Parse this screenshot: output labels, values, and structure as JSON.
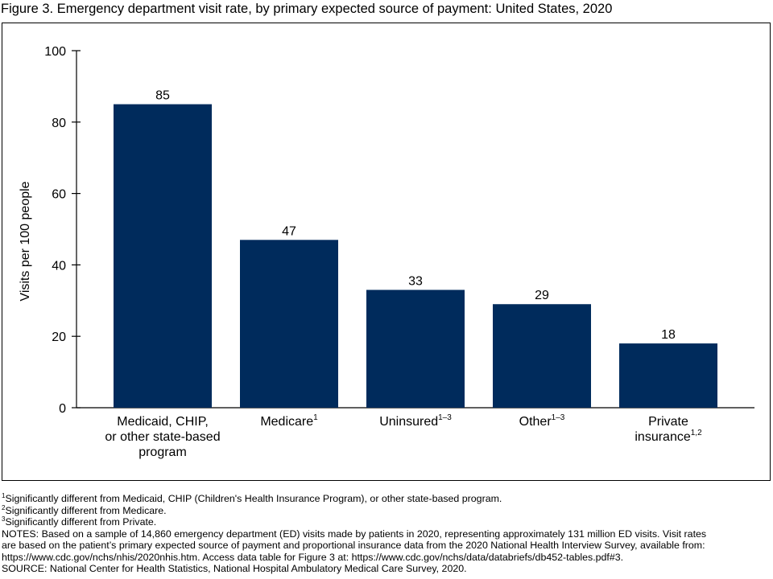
{
  "title": "Figure 3. Emergency department visit rate, by primary expected source of payment: United States, 2020",
  "chart_data": {
    "type": "bar",
    "title": "Figure 3. Emergency department visit rate, by primary expected source of payment: United States, 2020",
    "ylabel": "Visits per 100 people",
    "xlabel": "",
    "ylim": [
      0,
      100
    ],
    "yticks": [
      0,
      20,
      40,
      60,
      80,
      100
    ],
    "categories": [
      "Medicaid, CHIP, or other state-based program",
      "Medicare",
      "Uninsured",
      "Other",
      "Private insurance"
    ],
    "category_lines": [
      [
        "Medicaid, CHIP,",
        "or other state-based",
        "program"
      ],
      [
        "Medicare"
      ],
      [
        "Uninsured"
      ],
      [
        "Other"
      ],
      [
        "Private",
        "insurance"
      ]
    ],
    "category_superscripts": [
      "",
      "1",
      "1–3",
      "1–3",
      "1,2"
    ],
    "values": [
      85,
      47,
      33,
      29,
      18
    ],
    "value_labels": [
      "85",
      "47",
      "33",
      "29",
      "18"
    ],
    "bar_color": "#002b5c",
    "grid": false
  },
  "footnotes": [
    {
      "mark": "1",
      "text": "Significantly different from Medicaid, CHIP (Children's Health Insurance Program), or other state-based program."
    },
    {
      "mark": "2",
      "text": "Significantly different from Medicare."
    },
    {
      "mark": "3",
      "text": "Significantly different from Private."
    }
  ],
  "notes": {
    "line1": "NOTES: Based on a sample of 14,860 emergency department (ED) visits made by patients in 2020, representing approximately 131 million ED visits. Visit rates",
    "line2": "are based on the patient’s primary expected source of payment and proportional insurance data from the 2020 National Health Interview Survey, available from:",
    "line3": "https://www.cdc.gov/nchs/nhis/2020nhis.htm. Access data table for Figure 3 at: https://www.cdc.gov/nchs/data/databriefs/db452-tables.pdf#3."
  },
  "source": "SOURCE: National Center for Health Statistics, National Hospital Ambulatory Medical Care Survey, 2020."
}
